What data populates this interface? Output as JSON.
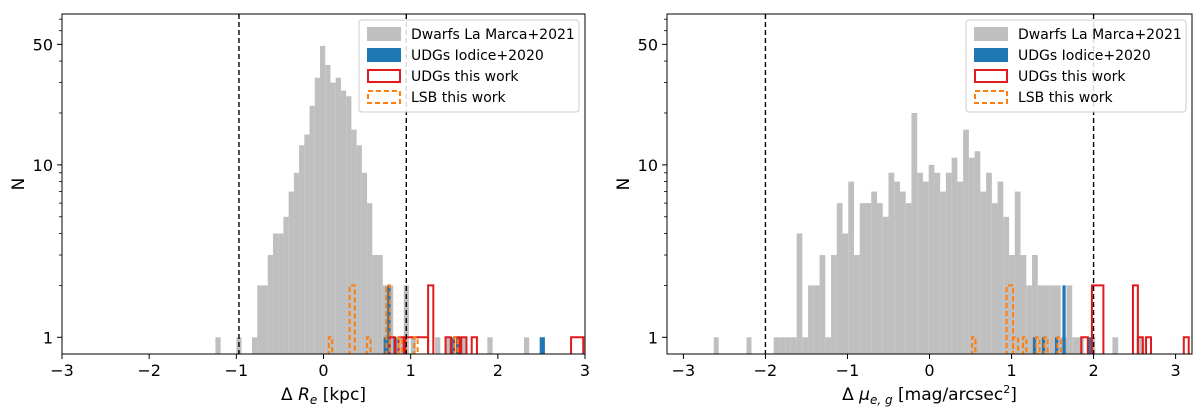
{
  "figure": {
    "panels": [
      "left",
      "right"
    ]
  },
  "colors": {
    "dwarfs": "#bfbfbf",
    "udgs_iodice": "#1f77b4",
    "udgs_this": "#e31a1c",
    "lsb_this": "#ff7f0e",
    "vline": "#000000"
  },
  "chart_data": [
    {
      "type": "bar",
      "panel": "left",
      "xlabel_main": "Δ",
      "xlabel_var": "R",
      "xlabel_sub": "e",
      "xlabel_unit": " [kpc]",
      "ylabel": "N",
      "xlim": [
        -3,
        3
      ],
      "ylim": [
        0.8,
        75
      ],
      "yscale": "log",
      "xticks": [
        -3,
        -2,
        -1,
        0,
        1,
        2,
        3
      ],
      "xtick_labels": [
        "−3",
        "−2",
        "−1",
        "0",
        "1",
        "2",
        "3"
      ],
      "yticks": [
        1,
        10,
        50
      ],
      "ytick_labels": [
        "1",
        "10",
        "50"
      ],
      "vlines": [
        -0.97,
        0.95
      ],
      "legend": {
        "placement": "top-right",
        "entries": [
          {
            "label": "Dwarfs La Marca+2021",
            "style": "filled",
            "color": "dwarfs"
          },
          {
            "label": "UDGs Iodice+2020",
            "style": "filled",
            "color": "udgs_iodice"
          },
          {
            "label": "UDGs this work",
            "style": "step",
            "color": "udgs_this"
          },
          {
            "label": "LSB this work",
            "style": "dashed",
            "color": "lsb_this"
          }
        ]
      },
      "series": [
        {
          "name": "Dwarfs La Marca+2021",
          "kind": "bar",
          "color": "dwarfs",
          "bins": [
            [
              -1.24,
              -1.18,
              1
            ],
            [
              -1.0,
              -0.94,
              1
            ],
            [
              -0.82,
              -0.76,
              1
            ],
            [
              -0.76,
              -0.7,
              2
            ],
            [
              -0.7,
              -0.64,
              2
            ],
            [
              -0.64,
              -0.58,
              3
            ],
            [
              -0.58,
              -0.52,
              4
            ],
            [
              -0.52,
              -0.46,
              4
            ],
            [
              -0.46,
              -0.4,
              5
            ],
            [
              -0.4,
              -0.34,
              7
            ],
            [
              -0.34,
              -0.28,
              9
            ],
            [
              -0.28,
              -0.22,
              13
            ],
            [
              -0.22,
              -0.16,
              15
            ],
            [
              -0.16,
              -0.1,
              22
            ],
            [
              -0.1,
              -0.04,
              32
            ],
            [
              -0.04,
              0.02,
              49
            ],
            [
              0.02,
              0.08,
              38
            ],
            [
              0.08,
              0.14,
              30
            ],
            [
              0.14,
              0.2,
              32
            ],
            [
              0.2,
              0.26,
              27
            ],
            [
              0.26,
              0.32,
              25
            ],
            [
              0.32,
              0.38,
              16
            ],
            [
              0.38,
              0.44,
              13
            ],
            [
              0.44,
              0.5,
              9
            ],
            [
              0.5,
              0.56,
              6
            ],
            [
              0.56,
              0.62,
              3
            ],
            [
              0.62,
              0.68,
              3
            ],
            [
              0.68,
              0.74,
              2
            ],
            [
              0.74,
              0.8,
              2
            ],
            [
              0.8,
              0.86,
              1
            ],
            [
              0.86,
              0.92,
              1
            ],
            [
              0.92,
              0.98,
              2
            ],
            [
              1.0,
              1.06,
              1
            ],
            [
              1.28,
              1.34,
              1
            ],
            [
              1.4,
              1.46,
              1
            ],
            [
              1.58,
              1.64,
              1
            ],
            [
              1.88,
              1.94,
              1
            ],
            [
              2.3,
              2.36,
              1
            ]
          ]
        },
        {
          "name": "UDGs Iodice+2020",
          "kind": "bar",
          "color": "udgs_iodice",
          "bins": [
            [
              0.69,
              0.73,
              1
            ],
            [
              0.73,
              0.77,
              2
            ],
            [
              0.8,
              0.84,
              1
            ],
            [
              1.46,
              1.5,
              1
            ],
            [
              1.52,
              1.56,
              1
            ],
            [
              2.48,
              2.54,
              1
            ]
          ]
        },
        {
          "name": "UDGs this work",
          "kind": "step",
          "color": "udgs_this",
          "bins": [
            [
              0.76,
              0.82,
              1
            ],
            [
              0.86,
              0.92,
              1
            ],
            [
              0.94,
              1.2,
              1
            ],
            [
              1.2,
              1.26,
              2
            ],
            [
              1.4,
              1.46,
              1
            ],
            [
              1.5,
              1.56,
              1
            ],
            [
              1.58,
              1.64,
              1
            ],
            [
              1.7,
              1.76,
              1
            ],
            [
              2.84,
              2.98,
              1
            ]
          ]
        },
        {
          "name": "LSB this work",
          "kind": "dashed",
          "color": "lsb_this",
          "bins": [
            [
              0.06,
              0.1,
              1
            ],
            [
              0.3,
              0.36,
              2
            ],
            [
              0.5,
              0.54,
              1
            ],
            [
              0.72,
              0.76,
              2
            ],
            [
              0.86,
              0.9,
              1
            ],
            [
              1.04,
              1.08,
              1
            ],
            [
              1.5,
              1.54,
              1
            ]
          ]
        }
      ]
    },
    {
      "type": "bar",
      "panel": "right",
      "xlabel_main": "Δ",
      "xlabel_var": "μ",
      "xlabel_sub": "e, g",
      "xlabel_unit": " [mag/arcsec",
      "xlabel_sup": "2",
      "xlabel_close": "]",
      "ylabel": "N",
      "xlim": [
        -3.2,
        3.2
      ],
      "ylim": [
        0.8,
        75
      ],
      "yscale": "log",
      "xticks": [
        -3,
        -2,
        -1,
        0,
        1,
        2,
        3
      ],
      "xtick_labels": [
        "−3",
        "−2",
        "−1",
        "0",
        "1",
        "2",
        "3"
      ],
      "yticks": [
        1,
        10,
        50
      ],
      "ytick_labels": [
        "1",
        "10",
        "50"
      ],
      "vlines": [
        -2.0,
        2.0
      ],
      "legend": {
        "placement": "top-right",
        "entries": [
          {
            "label": "Dwarfs La Marca+2021",
            "style": "filled",
            "color": "dwarfs"
          },
          {
            "label": "UDGs Iodice+2020",
            "style": "filled",
            "color": "udgs_iodice"
          },
          {
            "label": "UDGs this work",
            "style": "step",
            "color": "udgs_this"
          },
          {
            "label": "LSB this work",
            "style": "dashed",
            "color": "lsb_this"
          }
        ]
      },
      "series": [
        {
          "name": "Dwarfs La Marca+2021",
          "kind": "bar",
          "color": "dwarfs",
          "bins": [
            [
              -2.63,
              -2.57,
              1
            ],
            [
              -2.23,
              -2.17,
              1
            ],
            [
              -1.9,
              -1.83,
              1
            ],
            [
              -1.83,
              -1.76,
              1
            ],
            [
              -1.76,
              -1.69,
              1
            ],
            [
              -1.69,
              -1.62,
              1
            ],
            [
              -1.62,
              -1.55,
              4
            ],
            [
              -1.55,
              -1.48,
              1
            ],
            [
              -1.48,
              -1.41,
              2
            ],
            [
              -1.41,
              -1.34,
              2
            ],
            [
              -1.34,
              -1.27,
              3
            ],
            [
              -1.27,
              -1.2,
              1
            ],
            [
              -1.2,
              -1.13,
              3
            ],
            [
              -1.13,
              -1.06,
              6
            ],
            [
              -1.06,
              -0.99,
              4
            ],
            [
              -0.99,
              -0.92,
              8
            ],
            [
              -0.92,
              -0.85,
              3
            ],
            [
              -0.85,
              -0.78,
              6
            ],
            [
              -0.78,
              -0.71,
              6
            ],
            [
              -0.71,
              -0.64,
              7
            ],
            [
              -0.64,
              -0.57,
              6
            ],
            [
              -0.57,
              -0.5,
              5
            ],
            [
              -0.5,
              -0.43,
              9
            ],
            [
              -0.43,
              -0.36,
              8
            ],
            [
              -0.36,
              -0.29,
              7
            ],
            [
              -0.29,
              -0.22,
              6
            ],
            [
              -0.22,
              -0.15,
              20
            ],
            [
              -0.15,
              -0.08,
              9
            ],
            [
              -0.08,
              -0.01,
              8
            ],
            [
              -0.01,
              0.06,
              10
            ],
            [
              0.06,
              0.13,
              9
            ],
            [
              0.13,
              0.2,
              7
            ],
            [
              0.2,
              0.27,
              9
            ],
            [
              0.27,
              0.34,
              11
            ],
            [
              0.34,
              0.41,
              8
            ],
            [
              0.41,
              0.48,
              16
            ],
            [
              0.48,
              0.55,
              11
            ],
            [
              0.55,
              0.62,
              12
            ],
            [
              0.62,
              0.69,
              7
            ],
            [
              0.69,
              0.76,
              9
            ],
            [
              0.76,
              0.83,
              6
            ],
            [
              0.83,
              0.9,
              8
            ],
            [
              0.9,
              0.97,
              5
            ],
            [
              0.97,
              1.04,
              3
            ],
            [
              1.04,
              1.11,
              7
            ],
            [
              1.11,
              1.18,
              3
            ],
            [
              1.18,
              1.25,
              2
            ],
            [
              1.25,
              1.32,
              3
            ],
            [
              1.32,
              1.39,
              2
            ],
            [
              1.39,
              1.46,
              2
            ],
            [
              1.46,
              1.53,
              2
            ],
            [
              1.53,
              1.6,
              2
            ],
            [
              1.6,
              1.67,
              1
            ],
            [
              1.67,
              1.74,
              2
            ],
            [
              1.74,
              1.81,
              1
            ],
            [
              1.81,
              1.88,
              1
            ],
            [
              1.95,
              2.02,
              1
            ],
            [
              2.23,
              2.3,
              1
            ],
            [
              2.55,
              2.62,
              1
            ]
          ]
        },
        {
          "name": "UDGs Iodice+2020",
          "kind": "bar",
          "color": "udgs_iodice",
          "bins": [
            [
              1.26,
              1.3,
              1
            ],
            [
              1.37,
              1.41,
              1
            ],
            [
              1.53,
              1.57,
              1
            ],
            [
              1.62,
              1.66,
              2
            ],
            [
              1.93,
              1.97,
              1
            ]
          ]
        },
        {
          "name": "UDGs this work",
          "kind": "step",
          "color": "udgs_this",
          "bins": [
            [
              1.85,
              1.93,
              1
            ],
            [
              1.98,
              2.12,
              2
            ],
            [
              2.48,
              2.54,
              2
            ],
            [
              2.54,
              2.6,
              1
            ],
            [
              2.64,
              2.7,
              1
            ],
            [
              3.1,
              3.16,
              1
            ]
          ]
        },
        {
          "name": "LSB this work",
          "kind": "dashed",
          "color": "lsb_this",
          "bins": [
            [
              0.52,
              0.56,
              1
            ],
            [
              0.94,
              1.02,
              2
            ],
            [
              1.02,
              1.08,
              1
            ],
            [
              1.14,
              1.18,
              1
            ],
            [
              1.3,
              1.34,
              1
            ],
            [
              1.4,
              1.44,
              1
            ],
            [
              1.56,
              1.6,
              1
            ]
          ]
        }
      ]
    }
  ]
}
